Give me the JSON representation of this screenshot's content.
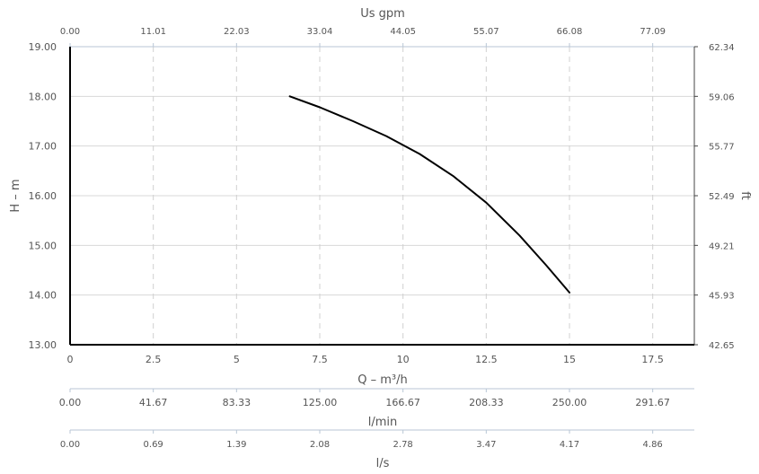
{
  "chart_data": {
    "type": "line",
    "xlabel": "Q – m³/h",
    "ylabel": "H – m",
    "y2label": "ft",
    "top_axis_label": "Us gpm",
    "bottom_axis2_label": "l/min",
    "bottom_axis3_label": "l/s",
    "xlim": [
      0,
      18.75
    ],
    "ylim": [
      13,
      19
    ],
    "grid": true,
    "x_tick_values": [
      0,
      2.5,
      5,
      7.5,
      10,
      12.5,
      15,
      17.5
    ],
    "x_tick_labels": [
      "0",
      "2.5",
      "5",
      "7.5",
      "10",
      "12.5",
      "15",
      "17.5"
    ],
    "y_tick_values": [
      13,
      14,
      15,
      16,
      17,
      18,
      19
    ],
    "y_tick_labels": [
      "13.00",
      "14.00",
      "15.00",
      "16.00",
      "17.00",
      "18.00",
      "19.00"
    ],
    "y2_tick_labels": [
      "42.65",
      "45.93",
      "49.21",
      "52.49",
      "55.77",
      "59.06",
      "62.34"
    ],
    "top_tick_labels": [
      "0.00",
      "11.01",
      "22.03",
      "33.04",
      "44.05",
      "55.07",
      "66.08",
      "77.09"
    ],
    "lmin_tick_labels": [
      "0.00",
      "41.67",
      "83.33",
      "125.00",
      "166.67",
      "208.33",
      "250.00",
      "291.67"
    ],
    "ls_tick_labels": [
      "0.00",
      "0.69",
      "1.39",
      "2.08",
      "2.78",
      "3.47",
      "4.17",
      "4.86"
    ],
    "series": [
      {
        "x": [
          6.6,
          7.5,
          8.5,
          9.5,
          10.5,
          11.5,
          12.5,
          13.5,
          14.3,
          15.0
        ],
        "y": [
          18.0,
          17.78,
          17.5,
          17.2,
          16.84,
          16.4,
          15.86,
          15.2,
          14.6,
          14.05
        ],
        "color": "#000000"
      }
    ]
  }
}
